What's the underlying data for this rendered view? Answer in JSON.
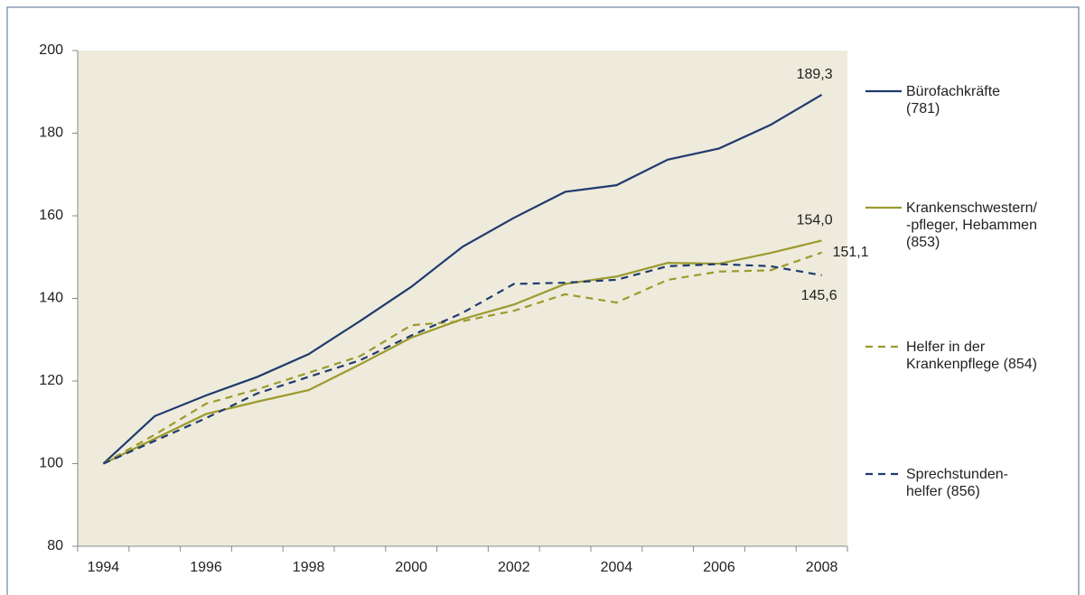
{
  "chart_data": {
    "type": "line",
    "categories": [
      "1994",
      null,
      "1996",
      null,
      "1998",
      null,
      "2000",
      null,
      "2002",
      null,
      "2004",
      null,
      "2006",
      null,
      "2008"
    ],
    "series": [
      {
        "name": "Bürofachkräfte\n(781)",
        "color": "#1f3b6e",
        "dashed": false,
        "values": [
          100,
          111.5,
          116.5,
          121,
          126.5,
          134.5,
          142.8,
          152.5,
          159.5,
          165.8,
          167.4,
          173.6,
          176.3,
          182,
          189.3
        ],
        "value_labels": [
          null,
          null,
          null,
          null,
          null,
          null,
          null,
          null,
          null,
          null,
          null,
          null,
          null,
          null,
          "189,3"
        ]
      },
      {
        "name": "Krankenschwestern/\n-pfleger, Hebammen\n(853)",
        "color": "#9c9a2e",
        "dashed": false,
        "values": [
          100,
          106,
          112,
          115,
          117.8,
          124,
          130.5,
          135,
          138.5,
          143.5,
          145.3,
          148.6,
          148.4,
          151,
          154.0
        ],
        "value_labels": [
          null,
          null,
          null,
          null,
          null,
          null,
          null,
          null,
          null,
          null,
          null,
          null,
          null,
          null,
          "154,0"
        ]
      },
      {
        "name": "Helfer in der\nKrankenpflege (854)",
        "color": "#9c9a2e",
        "dashed": true,
        "values": [
          100,
          107,
          114.5,
          118,
          122,
          126,
          133.5,
          134.5,
          137,
          141,
          139,
          144.5,
          146.5,
          146.8,
          151.1
        ],
        "value_labels": [
          null,
          null,
          null,
          null,
          null,
          null,
          null,
          null,
          null,
          null,
          null,
          null,
          null,
          null,
          "151,1"
        ]
      },
      {
        "name": "Sprechstunden-\nhelfer (856)",
        "color": "#1f3b6e",
        "dashed": true,
        "values": [
          100,
          105.5,
          111,
          117,
          121,
          125,
          131,
          136.5,
          143.5,
          143.8,
          144.5,
          147.8,
          148.3,
          147.8,
          145.6
        ],
        "value_labels": [
          null,
          null,
          null,
          null,
          null,
          null,
          null,
          null,
          null,
          null,
          null,
          null,
          null,
          null,
          "145,6"
        ]
      }
    ],
    "ylim": [
      80,
      200
    ],
    "yticks": [
      80,
      100,
      120,
      140,
      160,
      180,
      200
    ],
    "plot_background": "#eeebdc"
  }
}
